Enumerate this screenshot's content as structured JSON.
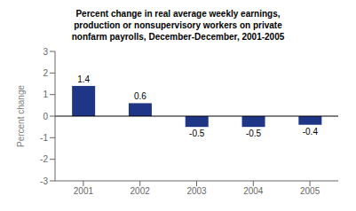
{
  "chart_data": {
    "type": "bar",
    "title": "Percent change in real average weekly earnings,\nproduction or nonsupervisory workers on private\nnonfarm payrolls, December-December, 2001-2005",
    "categories": [
      "2001",
      "2002",
      "2003",
      "2004",
      "2005"
    ],
    "values": [
      1.4,
      0.6,
      -0.5,
      -0.5,
      -0.4
    ],
    "color": "#1F3585",
    "ylabel": "Percent change",
    "ylim": [
      -3,
      3
    ],
    "yticks": [
      -3,
      -2,
      -1,
      0,
      1,
      2,
      3
    ],
    "grid": false,
    "data_labels": true
  }
}
